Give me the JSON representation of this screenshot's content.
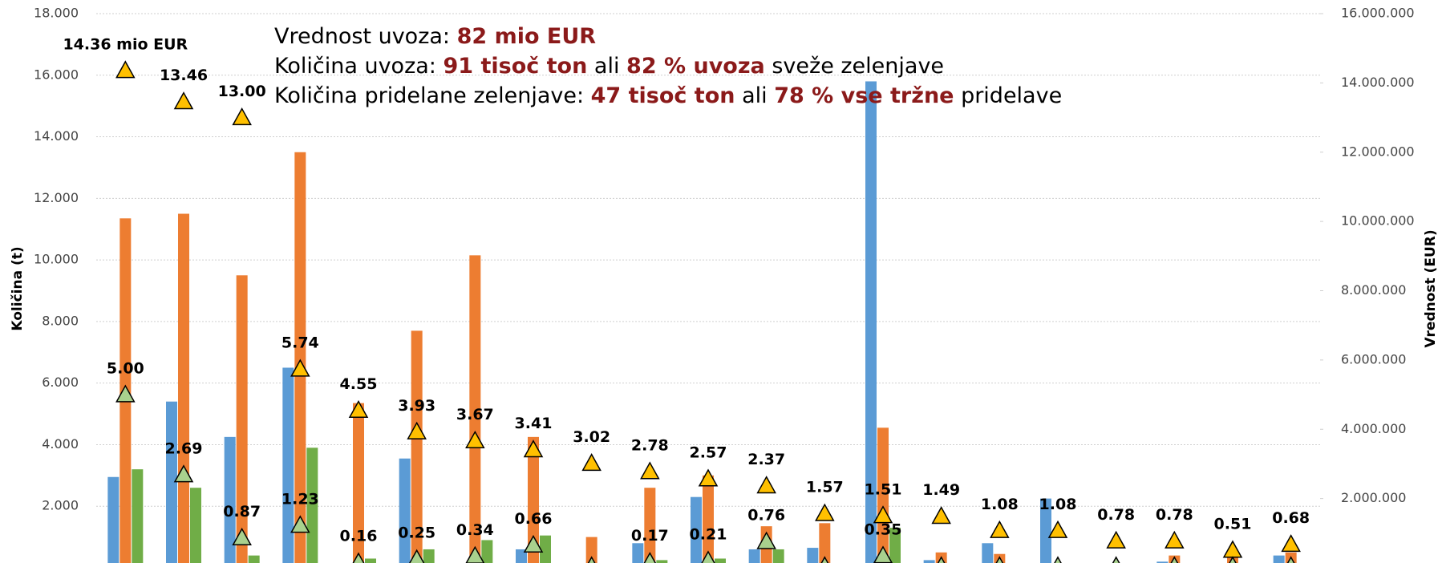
{
  "chart_data": {
    "type": "bar",
    "y_label": "Količina (t)",
    "y2_label": "Vrednost (EUR)",
    "annotation": [
      [
        {
          "text": "Vrednost uvoza: ",
          "bold": false
        },
        {
          "text": "82 mio EUR",
          "bold": true
        }
      ],
      [
        {
          "text": "Količina uvoza: ",
          "bold": false
        },
        {
          "text": "91 tisoč ton",
          "bold": true
        },
        {
          "text": " ali ",
          "bold": false
        },
        {
          "text": "82 % uvoza",
          "bold": true
        },
        {
          "text": " sveže zelenjave",
          "bold": false
        }
      ],
      [
        {
          "text": "Količina pridelane zelenjave: ",
          "bold": false
        },
        {
          "text": "47 tisoč ton",
          "bold": true
        },
        {
          "text": " ali ",
          "bold": false
        },
        {
          "text": "78 % vse tržne",
          "bold": true
        },
        {
          "text": " pridelave",
          "bold": false
        }
      ]
    ],
    "annotation_color": "#8b1a1a",
    "categories": [
      null,
      null,
      null,
      null,
      null,
      null,
      null,
      null,
      null,
      null,
      null,
      null,
      null,
      null,
      null,
      null,
      null,
      null,
      null,
      null,
      null
    ],
    "ylim": [
      0,
      18000
    ],
    "yticks": [
      {
        "value": 2000,
        "label": "2.000"
      },
      {
        "value": 4000,
        "label": "4.000"
      },
      {
        "value": 6000,
        "label": "6.000"
      },
      {
        "value": 8000,
        "label": "8.000"
      },
      {
        "value": 10000,
        "label": "10.000"
      },
      {
        "value": 12000,
        "label": "12.000"
      },
      {
        "value": 14000,
        "label": "14.000"
      },
      {
        "value": 16000,
        "label": "16.000"
      },
      {
        "value": 18000,
        "label": "18.000"
      }
    ],
    "y2lim": [
      0,
      16000000
    ],
    "y2ticks": [
      {
        "value": 2000000,
        "label": "2.000.000"
      },
      {
        "value": 4000000,
        "label": "4.000.000"
      },
      {
        "value": 6000000,
        "label": "6.000.000"
      },
      {
        "value": 8000000,
        "label": "8.000.000"
      },
      {
        "value": 10000000,
        "label": "10.000.000"
      },
      {
        "value": 12000000,
        "label": "12.000.000"
      },
      {
        "value": 14000000,
        "label": "14.000.000"
      },
      {
        "value": 16000000,
        "label": "16.000.000"
      }
    ],
    "grid": true,
    "series": [
      {
        "color": "#5b9bd5",
        "values": [
          2950,
          5400,
          4250,
          6500,
          100,
          3550,
          50,
          600,
          150,
          800,
          2300,
          600,
          650,
          15800,
          250,
          800,
          2250,
          50,
          200,
          50,
          400
        ]
      },
      {
        "color": "#ed7d31",
        "values": [
          11350,
          11500,
          9500,
          13500,
          5350,
          7700,
          10150,
          4250,
          1000,
          2600,
          3000,
          1350,
          1450,
          4550,
          500,
          450,
          50,
          50,
          400,
          400,
          500
        ]
      },
      {
        "color": "#70ad47",
        "values": [
          3200,
          2600,
          400,
          3900,
          300,
          600,
          900,
          1050,
          30,
          250,
          300,
          600,
          30,
          1300,
          50,
          30,
          30,
          30,
          30,
          30,
          30
        ]
      },
      {
        "color": "#ffc000",
        "axis": "y2",
        "marker": "triangle",
        "values": [
          14360000,
          13460000,
          13000000,
          5740000,
          4550000,
          3930000,
          3670000,
          3410000,
          3020000,
          2780000,
          2570000,
          2370000,
          1570000,
          1510000,
          1490000,
          1080000,
          1080000,
          780000,
          780000,
          510000,
          680000
        ],
        "value_labels": [
          "14.36 mio EUR",
          "13.46",
          "13.00",
          "5.74",
          "4.55",
          "3.93",
          "3.67",
          "3.41",
          "3.02",
          "2.78",
          "2.57",
          "2.37",
          "1.57",
          "1.51",
          "1.49",
          "1.08",
          "1.08",
          "0.78",
          "0.78",
          "0.51",
          "0.68"
        ]
      },
      {
        "color": "#a9d18e",
        "axis": "y2",
        "marker": "triangle",
        "values": [
          5000000,
          2690000,
          870000,
          1230000,
          160000,
          250000,
          340000,
          660000,
          50000,
          170000,
          210000,
          760000,
          50000,
          350000,
          50000,
          50000,
          50000,
          50000,
          50000,
          50000,
          50000
        ],
        "value_labels": [
          "5.00",
          "2.69",
          "0.87",
          "1.23",
          "0.16",
          "0.25",
          "0.34",
          "0.66",
          null,
          "0.17",
          "0.21",
          "0.76",
          null,
          "0.35",
          null,
          null,
          null,
          null,
          null,
          null,
          null
        ]
      }
    ]
  }
}
